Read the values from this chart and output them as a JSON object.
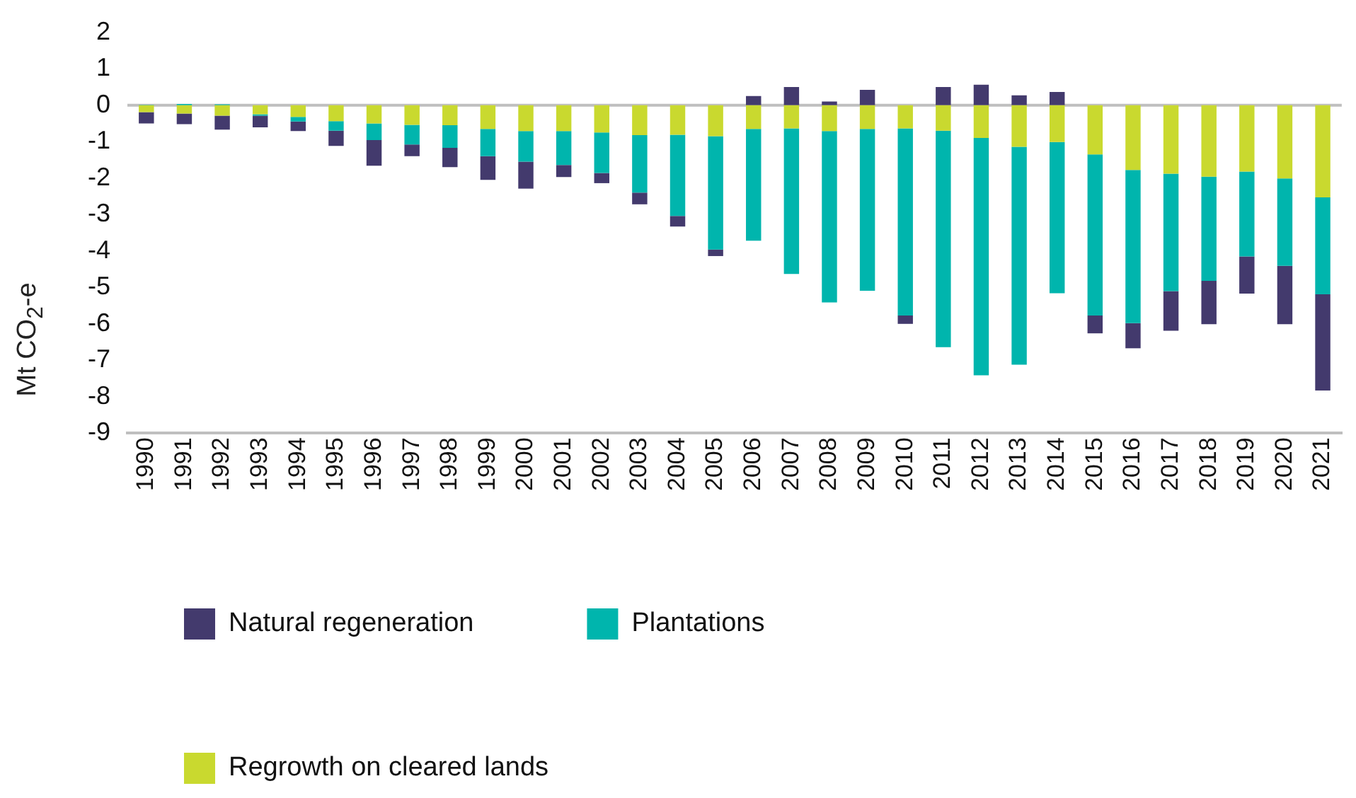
{
  "chart_data": {
    "type": "bar",
    "stacked": true,
    "ylabel": "Mt CO$_{2}$-e",
    "legend": "bottom",
    "grid": false,
    "categories": [
      "1990",
      "1991",
      "1992",
      "1993",
      "1994",
      "1995",
      "1996",
      "1997",
      "1998",
      "1999",
      "2000",
      "2001",
      "2002",
      "2003",
      "2004",
      "2005",
      "2006",
      "2007",
      "2008",
      "2009",
      "2010",
      "2011",
      "2012",
      "2013",
      "2014",
      "2015",
      "2016",
      "2017",
      "2018",
      "2019",
      "2020",
      "2021"
    ],
    "series": [
      {
        "name": "Regrowth on cleared lands",
        "color": "#c9d92f",
        "values": [
          -0.19,
          -0.23,
          -0.29,
          -0.25,
          -0.32,
          -0.44,
          -0.5,
          -0.54,
          -0.55,
          -0.65,
          -0.71,
          -0.71,
          -0.75,
          -0.82,
          -0.81,
          -0.85,
          -0.65,
          -0.64,
          -0.71,
          -0.65,
          -0.64,
          -0.7,
          -0.9,
          -1.14,
          -1.01,
          -1.35,
          -1.78,
          -1.88,
          -1.96,
          -1.82,
          -2.01,
          -2.53
        ]
      },
      {
        "name": "Plantations",
        "color": "#00b5ad",
        "values": [
          0.01,
          0.03,
          0.02,
          -0.04,
          -0.13,
          -0.26,
          -0.46,
          -0.54,
          -0.62,
          -0.75,
          -0.84,
          -0.93,
          -1.11,
          -1.58,
          -2.23,
          -3.11,
          -3.07,
          -3.99,
          -4.7,
          -4.44,
          -5.13,
          -5.94,
          -6.51,
          -5.98,
          -4.15,
          -4.42,
          -4.2,
          -3.22,
          -2.86,
          -2.33,
          -2.4,
          -2.66
        ]
      },
      {
        "name": "Natural regeneration",
        "color": "#433a6d",
        "values": [
          -0.31,
          -0.29,
          -0.38,
          -0.32,
          -0.26,
          -0.42,
          -0.7,
          -0.32,
          -0.53,
          -0.65,
          -0.74,
          -0.33,
          -0.28,
          -0.32,
          -0.29,
          -0.18,
          0.25,
          0.5,
          0.1,
          0.42,
          -0.23,
          0.5,
          0.56,
          0.27,
          0.36,
          -0.49,
          -0.69,
          -1.09,
          -1.19,
          -1.02,
          -1.6,
          -2.64
        ]
      }
    ],
    "ylim": [
      -9,
      2
    ],
    "yticks": [
      -9,
      -8,
      -7,
      -6,
      -5,
      -4,
      -3,
      -2,
      -1,
      0,
      1,
      2
    ],
    "ref_lines": [
      {
        "axis": "y",
        "value": 0,
        "color": "#bfbfbf"
      }
    ]
  }
}
